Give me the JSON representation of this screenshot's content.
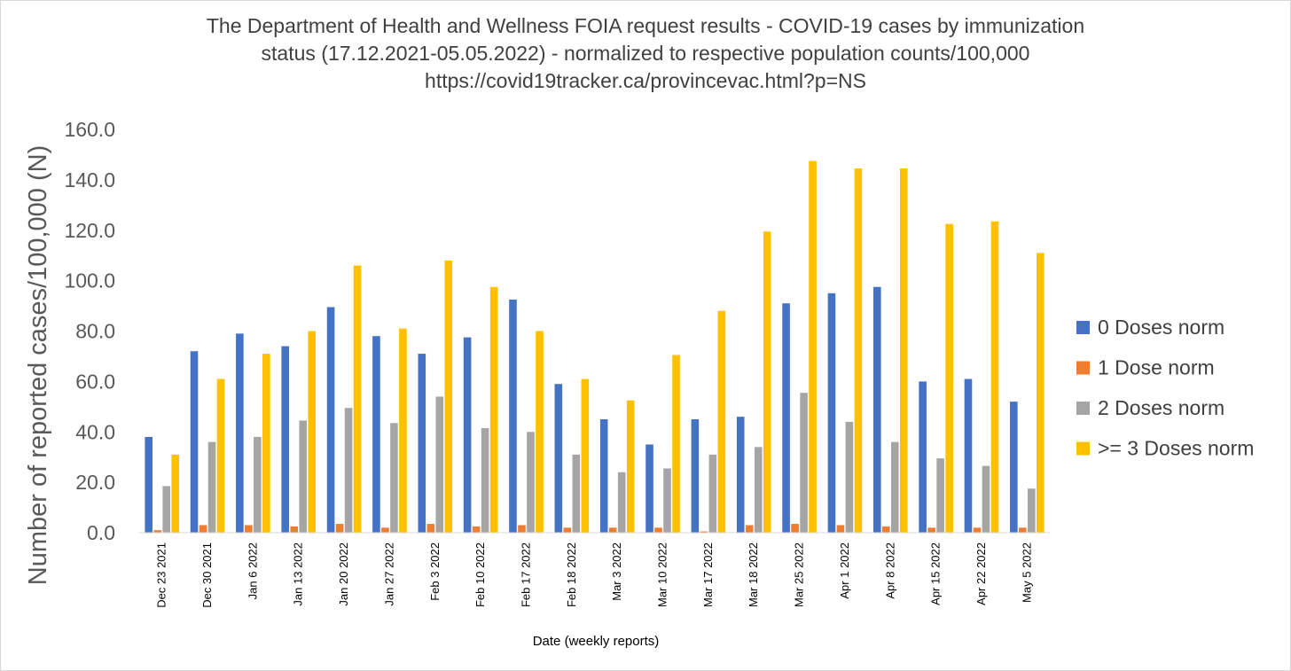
{
  "chart_data": {
    "type": "bar",
    "title": [
      "The Department of Health and Wellness FOIA request results - COVID-19 cases by immunization",
      "status (17.12.2021-05.05.2022) - normalized to respective population counts/100,000",
      "https://covid19tracker.ca/provincevac.html?p=NS"
    ],
    "xlabel": "Date (weekly reports)",
    "ylabel": "Number of reported cases/100,000 (N)",
    "ylim": [
      0,
      160
    ],
    "yticks": [
      "0.0",
      "20.0",
      "40.0",
      "60.0",
      "80.0",
      "100.0",
      "120.0",
      "140.0",
      "160.0"
    ],
    "grid": false,
    "legend_position": "right",
    "categories": [
      "Dec 23 2021",
      "Dec 30 2021",
      "Jan 6 2022",
      "Jan 13 2022",
      "Jan 20 2022",
      "Jan 27 2022",
      "Feb 3 2022",
      "Feb 10 2022",
      "Feb 17 2022",
      "Feb 18 2022",
      "Mar 3 2022",
      "Mar 10 2022",
      "Mar 17 2022",
      "Mar 18 2022",
      "Mar 25 2022",
      "Apr 1 2022",
      "Apr 8 2022",
      "Apr 15 2022",
      "Apr 22 2022",
      "May 5 2022"
    ],
    "series": [
      {
        "name": "0 Doses norm",
        "color": "#4472c4",
        "values": [
          38,
          72,
          79,
          74,
          89.5,
          78,
          71,
          77.5,
          92.5,
          59,
          45,
          35,
          45,
          46,
          91,
          95,
          97.5,
          60,
          61,
          52
        ]
      },
      {
        "name": "1 Dose norm",
        "color": "#ed7d31",
        "values": [
          1,
          3,
          3,
          2.5,
          3.5,
          2,
          3.5,
          2.5,
          3,
          2,
          2,
          2,
          0.5,
          3,
          3.5,
          3,
          2.5,
          2,
          2,
          2
        ]
      },
      {
        "name": "2 Doses norm",
        "color": "#a5a5a5",
        "values": [
          18.5,
          36,
          38,
          44.5,
          49.5,
          43.5,
          54,
          41.5,
          40,
          31,
          24,
          25.5,
          31,
          34,
          55.5,
          44,
          36,
          29.5,
          26.5,
          17.5
        ]
      },
      {
        "name": ">= 3 Doses norm",
        "color": "#ffc000",
        "values": [
          31,
          61,
          71,
          80,
          106,
          81,
          108,
          97.5,
          80,
          61,
          52.5,
          70.5,
          88,
          119.5,
          147.5,
          144.5,
          144.5,
          122.5,
          123.5,
          111
        ]
      }
    ]
  }
}
